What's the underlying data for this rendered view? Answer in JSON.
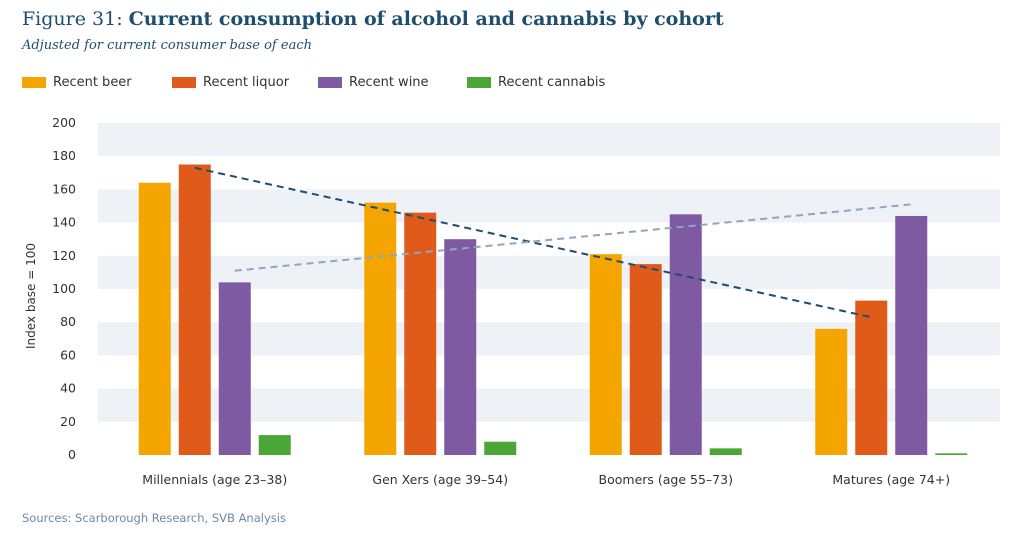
{
  "title_prefix": "Figure 31:",
  "title": "Current consumption of alcohol and cannabis by cohort",
  "subtitle": "Adjusted for current consumer base of each",
  "source": "Sources: Scarborough Research, SVB Analysis",
  "colors": {
    "beer": "#f5a500",
    "liquor": "#e05a1a",
    "wine": "#7e5aa2",
    "cannabis": "#4aa636",
    "trend_liquor": "#1d4e6e",
    "trend_wine": "#8ea6be",
    "band": "#eef2f6",
    "title": "#1d4e6e"
  },
  "chart_data": {
    "type": "bar",
    "ylabel": "Index base = 100",
    "xlabel": "",
    "ylim": [
      0,
      200
    ],
    "yticks": [
      0,
      20,
      40,
      60,
      80,
      100,
      120,
      140,
      160,
      180,
      200
    ],
    "categories": [
      "Millennials (age 23–38)",
      "Gen Xers (age 39–54)",
      "Boomers (age 55–73)",
      "Matures (age 74+)"
    ],
    "series": [
      {
        "name": "Recent beer",
        "color_key": "beer",
        "values": [
          164,
          152,
          121,
          76
        ]
      },
      {
        "name": "Recent liquor",
        "color_key": "liquor",
        "values": [
          175,
          146,
          115,
          93
        ]
      },
      {
        "name": "Recent wine",
        "color_key": "wine",
        "values": [
          104,
          130,
          145,
          144
        ]
      },
      {
        "name": "Recent cannabis",
        "color_key": "cannabis",
        "values": [
          12,
          8,
          4,
          1
        ]
      }
    ],
    "trendlines": [
      {
        "series": "Recent liquor",
        "color_key": "trend_liquor",
        "style": "dashed",
        "from": 173,
        "to": 83
      },
      {
        "series": "Recent wine",
        "color_key": "trend_wine",
        "style": "dashed",
        "from": 111,
        "to": 151
      }
    ],
    "grid": "alternating horizontal bands",
    "legend_position": "top-left"
  }
}
